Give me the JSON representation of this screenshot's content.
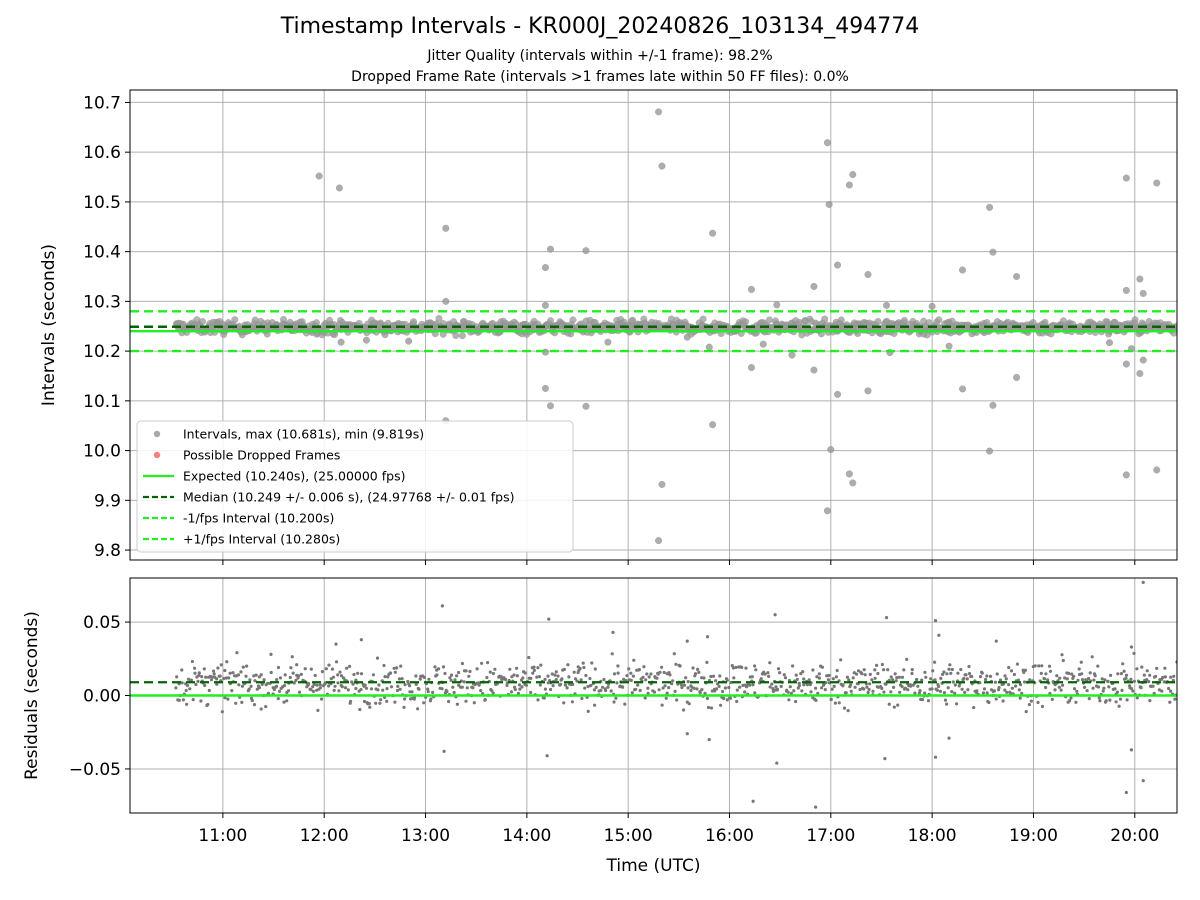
{
  "chart_data": [
    {
      "type": "scatter",
      "title": "Timestamp Intervals - KR000J_20240826_103134_494774",
      "subtitle_lines": [
        "Jitter Quality (intervals within +/-1 frame): 98.2%",
        "Dropped Frame Rate (intervals >1 frames late within 50 FF files): 0.0%"
      ],
      "xlabel": "",
      "ylabel": "Intervals (seconds)",
      "xlim": [
        "10:05",
        "20:25"
      ],
      "ylim": [
        9.78,
        10.725
      ],
      "yticks": [
        "9.8",
        "9.9",
        "10.0",
        "10.1",
        "10.2",
        "10.3",
        "10.4",
        "10.5",
        "10.6",
        "10.7"
      ],
      "grid": true,
      "legend_position": "lower-left",
      "legend": [
        "Intervals, max (10.681s), min (9.819s)",
        "Possible Dropped Frames",
        "Expected (10.240s), (25.00000 fps)",
        "Median (10.249 +/- 0.006 s), (24.97768 +/- 0.01 fps)",
        "-1/fps Interval (10.200s)",
        "+1/fps Interval (10.280s)"
      ],
      "reference_lines": {
        "expected": 10.24,
        "median": 10.249,
        "minus_1fps": 10.2,
        "plus_1fps": 10.28
      },
      "dense_band": {
        "x_start": "10:32",
        "x_end": "20:25",
        "y_center": 10.248,
        "y_spread": 0.012
      },
      "outliers": [
        {
          "x": "11:57",
          "y": 10.552
        },
        {
          "x": "12:09",
          "y": 10.528
        },
        {
          "x": "13:12",
          "y": 10.447
        },
        {
          "x": "13:12",
          "y": 10.3
        },
        {
          "x": "13:12",
          "y": 10.06
        },
        {
          "x": "14:11",
          "y": 10.368
        },
        {
          "x": "14:14",
          "y": 10.405
        },
        {
          "x": "14:11",
          "y": 10.292
        },
        {
          "x": "14:11",
          "y": 10.125
        },
        {
          "x": "14:14",
          "y": 10.09
        },
        {
          "x": "14:11",
          "y": 10.198
        },
        {
          "x": "14:35",
          "y": 10.402
        },
        {
          "x": "14:35",
          "y": 10.089
        },
        {
          "x": "15:18",
          "y": 10.681
        },
        {
          "x": "15:20",
          "y": 10.572
        },
        {
          "x": "15:20",
          "y": 9.932
        },
        {
          "x": "15:18",
          "y": 9.819
        },
        {
          "x": "15:50",
          "y": 10.437
        },
        {
          "x": "15:50",
          "y": 10.052
        },
        {
          "x": "15:48",
          "y": 10.208
        },
        {
          "x": "16:13",
          "y": 10.324
        },
        {
          "x": "16:13",
          "y": 10.167
        },
        {
          "x": "16:28",
          "y": 10.293
        },
        {
          "x": "16:50",
          "y": 10.33
        },
        {
          "x": "16:50",
          "y": 10.162
        },
        {
          "x": "16:58",
          "y": 10.619
        },
        {
          "x": "16:59",
          "y": 10.495
        },
        {
          "x": "17:04",
          "y": 10.373
        },
        {
          "x": "17:04",
          "y": 10.113
        },
        {
          "x": "17:11",
          "y": 10.534
        },
        {
          "x": "17:13",
          "y": 10.555
        },
        {
          "x": "17:13",
          "y": 9.935
        },
        {
          "x": "17:11",
          "y": 9.953
        },
        {
          "x": "17:00",
          "y": 10.002
        },
        {
          "x": "16:58",
          "y": 9.879
        },
        {
          "x": "17:22",
          "y": 10.354
        },
        {
          "x": "17:22",
          "y": 10.12
        },
        {
          "x": "17:33",
          "y": 10.292
        },
        {
          "x": "18:00",
          "y": 10.29
        },
        {
          "x": "18:10",
          "y": 10.21
        },
        {
          "x": "18:18",
          "y": 10.363
        },
        {
          "x": "18:18",
          "y": 10.124
        },
        {
          "x": "18:34",
          "y": 10.489
        },
        {
          "x": "18:36",
          "y": 10.399
        },
        {
          "x": "18:36",
          "y": 10.091
        },
        {
          "x": "18:34",
          "y": 9.999
        },
        {
          "x": "18:50",
          "y": 10.35
        },
        {
          "x": "18:50",
          "y": 10.147
        },
        {
          "x": "19:55",
          "y": 10.548
        },
        {
          "x": "19:55",
          "y": 10.322
        },
        {
          "x": "19:55",
          "y": 10.174
        },
        {
          "x": "19:55",
          "y": 9.951
        },
        {
          "x": "20:03",
          "y": 10.345
        },
        {
          "x": "20:05",
          "y": 10.316
        },
        {
          "x": "20:05",
          "y": 10.182
        },
        {
          "x": "20:03",
          "y": 10.155
        },
        {
          "x": "20:13",
          "y": 10.538
        },
        {
          "x": "20:13",
          "y": 9.961
        },
        {
          "x": "12:10",
          "y": 10.218
        },
        {
          "x": "12:25",
          "y": 10.222
        },
        {
          "x": "12:50",
          "y": 10.22
        },
        {
          "x": "14:48",
          "y": 10.218
        },
        {
          "x": "15:35",
          "y": 10.228
        },
        {
          "x": "16:20",
          "y": 10.214
        },
        {
          "x": "16:37",
          "y": 10.192
        },
        {
          "x": "17:35",
          "y": 10.197
        },
        {
          "x": "19:45",
          "y": 10.217
        },
        {
          "x": "19:58",
          "y": 10.205
        }
      ]
    },
    {
      "type": "scatter",
      "xlabel": "Time (UTC)",
      "ylabel": "Residuals (seconds)",
      "xlim": [
        "10:05",
        "20:25"
      ],
      "ylim": [
        -0.08,
        0.08
      ],
      "xticks": [
        "11:00",
        "12:00",
        "13:00",
        "14:00",
        "15:00",
        "16:00",
        "17:00",
        "18:00",
        "19:00",
        "20:00"
      ],
      "yticks": [
        "−0.05",
        "0.00",
        "0.05"
      ],
      "grid": true,
      "reference_lines": {
        "expected": 0.0,
        "median": 0.009
      },
      "dense_band": {
        "x_start": "10:32",
        "x_end": "20:25",
        "y_center": 0.008,
        "y_spread": 0.012
      },
      "outliers": [
        {
          "x": "13:10",
          "y": 0.061
        },
        {
          "x": "13:11",
          "y": -0.038
        },
        {
          "x": "14:13",
          "y": 0.052
        },
        {
          "x": "14:12",
          "y": -0.041
        },
        {
          "x": "14:51",
          "y": 0.043
        },
        {
          "x": "15:35",
          "y": 0.037
        },
        {
          "x": "15:47",
          "y": 0.04
        },
        {
          "x": "15:35",
          "y": -0.026
        },
        {
          "x": "15:48",
          "y": -0.03
        },
        {
          "x": "16:14",
          "y": -0.072
        },
        {
          "x": "16:27",
          "y": 0.055
        },
        {
          "x": "16:28",
          "y": -0.046
        },
        {
          "x": "16:51",
          "y": -0.076
        },
        {
          "x": "17:33",
          "y": 0.053
        },
        {
          "x": "17:32",
          "y": -0.043
        },
        {
          "x": "18:02",
          "y": 0.051
        },
        {
          "x": "18:02",
          "y": -0.042
        },
        {
          "x": "18:10",
          "y": -0.029
        },
        {
          "x": "18:04",
          "y": 0.041
        },
        {
          "x": "19:55",
          "y": -0.066
        },
        {
          "x": "19:58",
          "y": 0.033
        },
        {
          "x": "19:58",
          "y": -0.037
        },
        {
          "x": "20:05",
          "y": 0.077
        },
        {
          "x": "20:05",
          "y": -0.058
        },
        {
          "x": "18:38",
          "y": 0.037
        },
        {
          "x": "12:07",
          "y": 0.035
        },
        {
          "x": "12:22",
          "y": 0.038
        }
      ]
    }
  ],
  "colors": {
    "interval_points": "#999999",
    "residual_points": "#777777",
    "dropped_frames": "#ff6666",
    "expected_line": "#22ee22",
    "median_line": "#006400",
    "fps_interval_lines": "#22ee22",
    "grid": "#b0b0b0"
  }
}
